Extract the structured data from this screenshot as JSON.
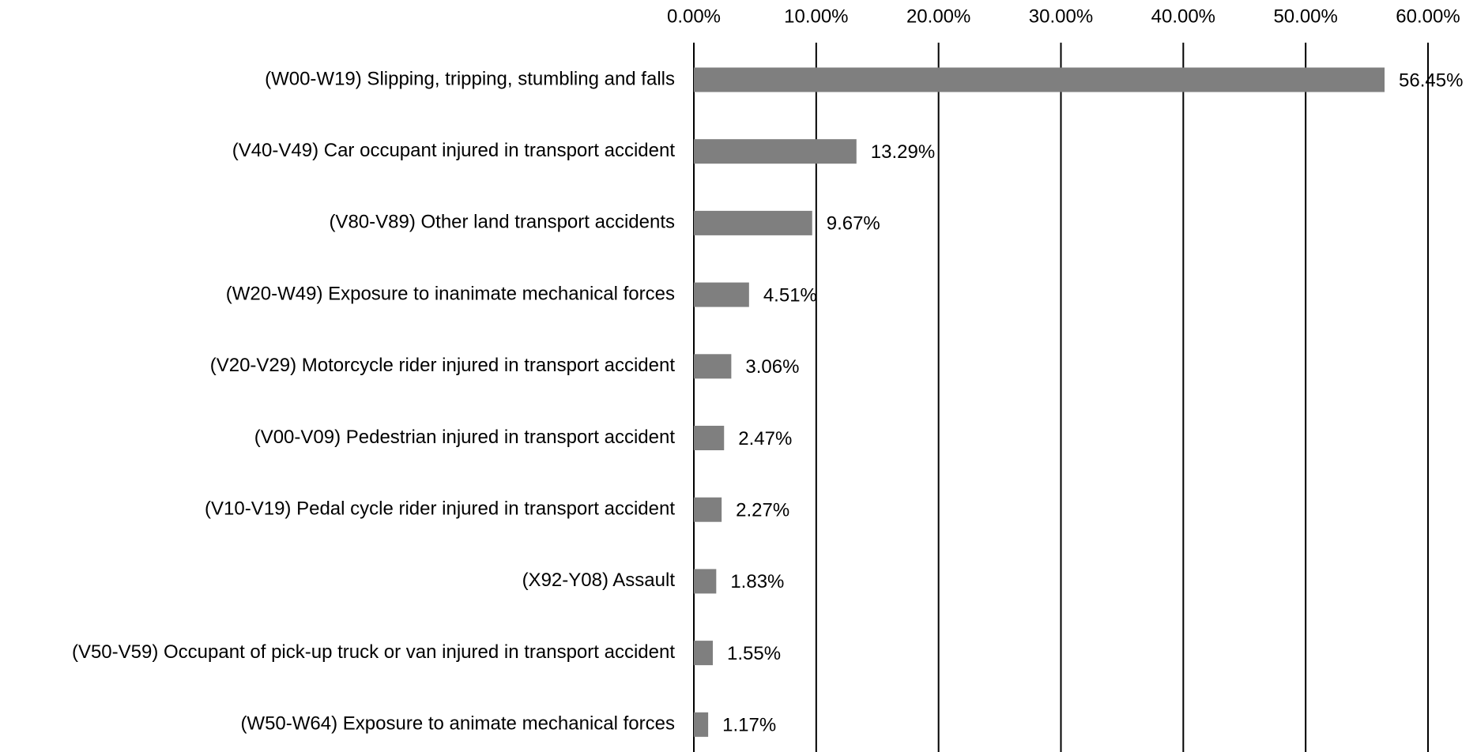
{
  "chart_data": {
    "type": "barh",
    "categories": [
      "(W00-W19) Slipping, tripping, stumbling and falls",
      "(V40-V49) Car occupant injured in transport accident",
      "(V80-V89) Other land transport accidents",
      "(W20-W49) Exposure to inanimate mechanical forces",
      "(V20-V29) Motorcycle rider injured in transport accident",
      "(V00-V09) Pedestrian injured in transport accident",
      "(V10-V19) Pedal cycle rider injured in transport accident",
      "(X92-Y08) Assault",
      "(V50-V59) Occupant of pick-up truck or van injured in transport accident",
      "(W50-W64) Exposure to animate mechanical forces"
    ],
    "values": [
      56.45,
      13.29,
      9.67,
      4.51,
      3.06,
      2.47,
      2.27,
      1.83,
      1.55,
      1.17
    ],
    "value_labels": [
      "56.45%",
      "13.29%",
      "9.67%",
      "4.51%",
      "3.06%",
      "2.47%",
      "2.27%",
      "1.83%",
      "1.55%",
      "1.17%"
    ],
    "color": "#7f7f7f",
    "xlim": [
      0,
      60
    ],
    "xticks": [
      {
        "value": 0,
        "label": "0.00%"
      },
      {
        "value": 10,
        "label": "10.00%"
      },
      {
        "value": 20,
        "label": "20.00%"
      },
      {
        "value": 30,
        "label": "30.00%"
      },
      {
        "value": 40,
        "label": "40.00%"
      },
      {
        "value": 50,
        "label": "50.00%"
      },
      {
        "value": 60,
        "label": "60.00%"
      }
    ],
    "grid": true
  }
}
